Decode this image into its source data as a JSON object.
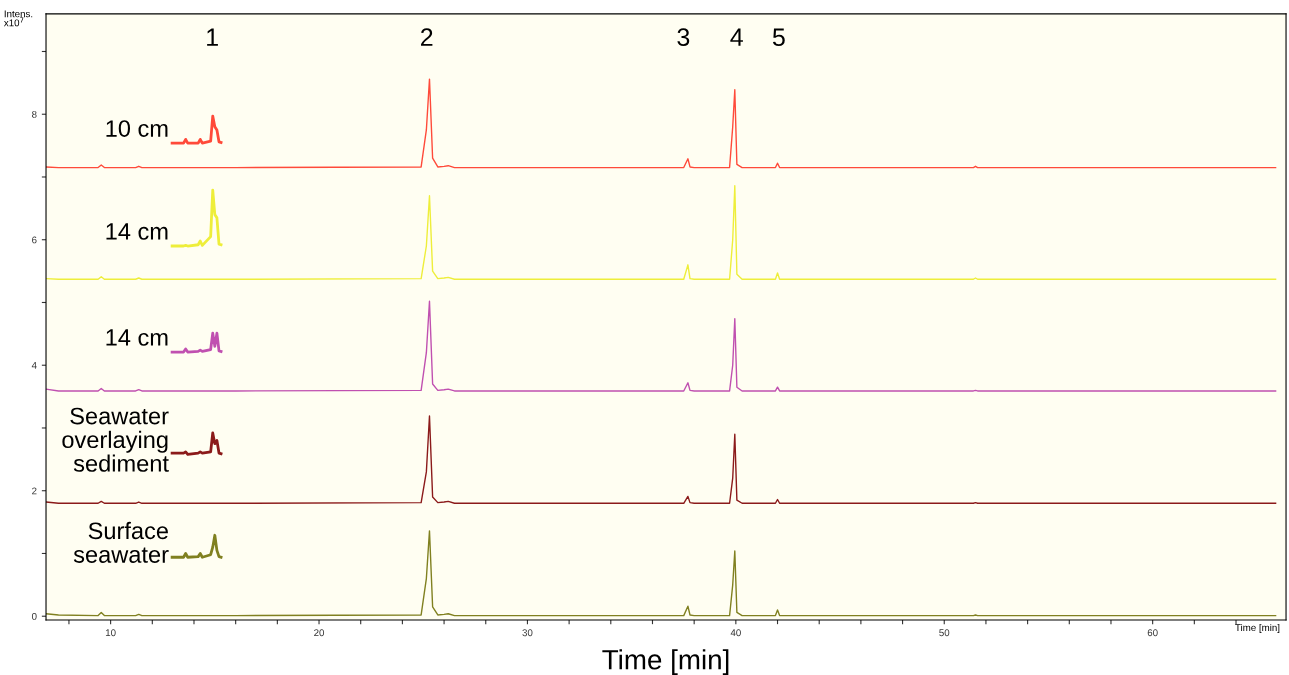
{
  "chart_data": {
    "type": "line",
    "xlabel": "Time [min]",
    "ylabel": "Intens.\nx10$^{7}$",
    "xlim": [
      6.9,
      66.4
    ],
    "ylim": [
      -0.06,
      9.6
    ],
    "xticks": [
      {
        "value": 8,
        "label": null
      },
      10,
      {
        "value": 12,
        "label": null
      },
      {
        "value": 14,
        "label": null
      },
      {
        "value": 16,
        "label": null
      },
      {
        "value": 18,
        "label": null
      },
      20,
      {
        "value": 22,
        "label": null
      },
      {
        "value": 24,
        "label": null
      },
      {
        "value": 26,
        "label": null
      },
      {
        "value": 28,
        "label": null
      },
      30,
      {
        "value": 32,
        "label": null
      },
      {
        "value": 34,
        "label": null
      },
      {
        "value": 36,
        "label": null
      },
      {
        "value": 38,
        "label": null
      },
      40,
      {
        "value": 42,
        "label": null
      },
      {
        "value": 44,
        "label": null
      },
      {
        "value": 46,
        "label": null
      },
      {
        "value": 48,
        "label": null
      },
      50,
      {
        "value": 52,
        "label": null
      },
      {
        "value": 54,
        "label": null
      },
      {
        "value": 56,
        "label": null
      },
      {
        "value": 58,
        "label": null
      },
      60,
      {
        "value": 62,
        "label": null
      },
      {
        "value": 64,
        "label": null
      }
    ],
    "yticks": [
      0,
      {
        "value": 1,
        "label": null
      },
      2,
      {
        "value": 3,
        "label": null
      },
      4,
      {
        "value": 5,
        "label": null
      },
      6,
      {
        "value": 7,
        "label": null
      },
      8,
      {
        "value": 9,
        "label": null
      }
    ],
    "grid": false,
    "legend": false,
    "x": [
      6.9,
      7.5,
      9.4,
      9.55,
      9.7,
      11.2,
      11.35,
      11.5,
      16.0,
      24.9,
      25.15,
      25.3,
      25.45,
      25.7,
      26.0,
      26.2,
      26.5,
      37.5,
      37.7,
      37.8,
      38.0,
      39.7,
      39.85,
      39.95,
      40.05,
      40.3,
      41.9,
      42.0,
      42.1,
      51.4,
      51.5,
      51.6,
      65.9
    ],
    "series": [
      {
        "color": "#ff4a3a",
        "values": [
          7.16,
          7.15,
          7.15,
          7.19,
          7.15,
          7.15,
          7.17,
          7.15,
          7.15,
          7.16,
          7.75,
          8.56,
          7.3,
          7.16,
          7.17,
          7.18,
          7.15,
          7.15,
          7.29,
          7.16,
          7.15,
          7.15,
          7.8,
          8.39,
          7.2,
          7.15,
          7.15,
          7.22,
          7.15,
          7.15,
          7.17,
          7.15,
          7.15
        ]
      },
      {
        "color": "#eeee3a",
        "values": [
          5.38,
          5.37,
          5.37,
          5.41,
          5.37,
          5.37,
          5.39,
          5.37,
          5.37,
          5.38,
          5.9,
          6.7,
          5.5,
          5.38,
          5.39,
          5.4,
          5.37,
          5.37,
          5.6,
          5.38,
          5.37,
          5.37,
          6.0,
          6.86,
          5.45,
          5.37,
          5.37,
          5.47,
          5.37,
          5.37,
          5.39,
          5.37,
          5.37
        ]
      },
      {
        "color": "#c050b0",
        "values": [
          3.62,
          3.59,
          3.59,
          3.63,
          3.59,
          3.59,
          3.61,
          3.59,
          3.59,
          3.6,
          4.2,
          5.02,
          3.7,
          3.6,
          3.61,
          3.62,
          3.59,
          3.59,
          3.72,
          3.6,
          3.59,
          3.59,
          4.0,
          4.74,
          3.65,
          3.59,
          3.59,
          3.65,
          3.59,
          3.59,
          3.6,
          3.59,
          3.59
        ]
      },
      {
        "color": "#8b1a1a",
        "values": [
          1.82,
          1.8,
          1.8,
          1.83,
          1.8,
          1.8,
          1.82,
          1.8,
          1.8,
          1.81,
          2.3,
          3.19,
          1.9,
          1.81,
          1.82,
          1.83,
          1.8,
          1.8,
          1.91,
          1.81,
          1.8,
          1.8,
          2.2,
          2.9,
          1.85,
          1.8,
          1.8,
          1.86,
          1.8,
          1.8,
          1.81,
          1.8,
          1.8
        ]
      },
      {
        "color": "#808020",
        "values": [
          0.04,
          0.02,
          0.01,
          0.06,
          0.01,
          0.01,
          0.03,
          0.01,
          0.01,
          0.02,
          0.6,
          1.36,
          0.15,
          0.02,
          0.03,
          0.04,
          0.01,
          0.01,
          0.16,
          0.02,
          0.01,
          0.01,
          0.5,
          1.04,
          0.06,
          0.01,
          0.01,
          0.1,
          0.01,
          0.01,
          0.02,
          0.01,
          0.01
        ]
      },
      {
        "name": "10 cm",
        "color": "#ff4a3a",
        "x": [
          12.95,
          13.5,
          13.6,
          13.7,
          14.2,
          14.3,
          14.4,
          14.8,
          14.9,
          15.0,
          15.1,
          15.2,
          15.3
        ],
        "values": [
          7.54,
          7.54,
          7.6,
          7.54,
          7.54,
          7.6,
          7.54,
          7.57,
          7.97,
          7.8,
          7.75,
          7.56,
          7.55
        ]
      },
      {
        "name": "14 cm",
        "color": "#eeee3a",
        "x": [
          12.95,
          13.5,
          13.6,
          13.7,
          14.2,
          14.3,
          14.4,
          14.8,
          14.9,
          15.0,
          15.1,
          15.2,
          15.3
        ],
        "values": [
          5.9,
          5.9,
          5.91,
          5.9,
          5.92,
          5.98,
          5.91,
          6.05,
          6.79,
          6.4,
          6.35,
          5.93,
          5.92
        ]
      },
      {
        "name": "14 cm",
        "color": "#c050b0",
        "x": [
          12.95,
          13.5,
          13.6,
          13.7,
          14.2,
          14.3,
          14.4,
          14.8,
          14.9,
          15.0,
          15.1,
          15.2,
          15.3
        ],
        "values": [
          4.21,
          4.21,
          4.26,
          4.21,
          4.22,
          4.24,
          4.22,
          4.25,
          4.51,
          4.3,
          4.51,
          4.23,
          4.22
        ]
      },
      {
        "name": "Seawater\noverlaying\nsediment",
        "color": "#8b1a1a",
        "x": [
          12.95,
          13.5,
          13.6,
          13.7,
          14.2,
          14.3,
          14.4,
          14.8,
          14.9,
          15.0,
          15.1,
          15.2,
          15.3
        ],
        "values": [
          2.6,
          2.6,
          2.62,
          2.58,
          2.6,
          2.62,
          2.6,
          2.62,
          2.92,
          2.75,
          2.8,
          2.6,
          2.59
        ]
      },
      {
        "name": "Surface\nseawater",
        "color": "#808020",
        "x": [
          12.95,
          13.5,
          13.6,
          13.7,
          14.2,
          14.3,
          14.4,
          14.8,
          14.9,
          15.0,
          15.1,
          15.2,
          15.3
        ],
        "values": [
          0.94,
          0.94,
          1.0,
          0.94,
          0.95,
          1.0,
          0.94,
          0.98,
          1.1,
          1.29,
          1.05,
          0.95,
          0.94
        ]
      }
    ],
    "annotations": [
      "1",
      "2",
      "3",
      "4",
      "5",
      "Time [min]"
    ]
  }
}
